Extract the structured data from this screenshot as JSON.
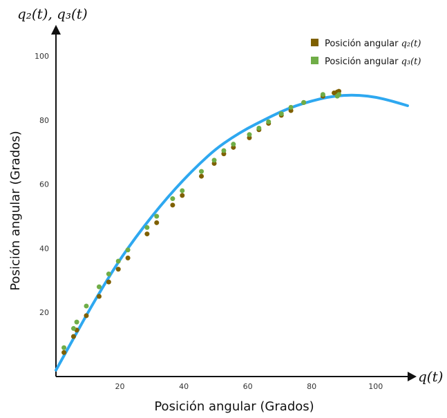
{
  "chart_data": {
    "type": "scatter",
    "title": "",
    "xlabel": "Posición angular (Grados)",
    "ylabel": "Posición angular (Grados)",
    "x_axis_symbol": "q(t)",
    "y_axis_symbol": "q₂(t), q₃(t)",
    "xlim": [
      0,
      110
    ],
    "ylim": [
      0,
      108
    ],
    "x_ticks": [
      20,
      40,
      60,
      80,
      100
    ],
    "y_ticks": [
      20,
      40,
      60,
      80,
      100
    ],
    "grid": false,
    "legend_position": "top-right",
    "series": [
      {
        "name": "Posición angular q₂(t)",
        "legend_prefix": "Posición angular ",
        "legend_symbol": "q₂(t)",
        "color": "#7f6000",
        "points": [
          [
            2.5,
            7.5
          ],
          [
            5.5,
            12.5
          ],
          [
            6.5,
            14.5
          ],
          [
            9.5,
            19.0
          ],
          [
            13.5,
            25.0
          ],
          [
            16.5,
            29.5
          ],
          [
            19.5,
            33.5
          ],
          [
            22.5,
            37.0
          ],
          [
            28.5,
            44.5
          ],
          [
            31.5,
            48.0
          ],
          [
            36.5,
            53.5
          ],
          [
            39.5,
            56.5
          ],
          [
            45.5,
            62.5
          ],
          [
            49.5,
            66.5
          ],
          [
            52.5,
            69.5
          ],
          [
            55.5,
            71.5
          ],
          [
            60.5,
            74.5
          ],
          [
            63.5,
            77.0
          ],
          [
            66.5,
            79.0
          ],
          [
            70.5,
            81.5
          ],
          [
            73.5,
            83.0
          ],
          [
            77.5,
            85.5
          ],
          [
            83.5,
            87.5
          ],
          [
            87.0,
            88.5
          ],
          [
            88.0,
            88.8
          ],
          [
            88.5,
            89.0
          ]
        ]
      },
      {
        "name": "Posición angular q₃(t)",
        "legend_prefix": "Posición angular ",
        "legend_symbol": "q₃(t)",
        "color": "#70ad47",
        "points": [
          [
            2.5,
            9.0
          ],
          [
            5.5,
            15.0
          ],
          [
            6.5,
            17.0
          ],
          [
            9.5,
            22.0
          ],
          [
            13.5,
            28.0
          ],
          [
            16.5,
            32.0
          ],
          [
            19.5,
            36.0
          ],
          [
            22.5,
            39.5
          ],
          [
            28.5,
            46.5
          ],
          [
            31.5,
            50.0
          ],
          [
            36.5,
            55.5
          ],
          [
            39.5,
            58.0
          ],
          [
            45.5,
            64.0
          ],
          [
            49.5,
            67.5
          ],
          [
            52.5,
            70.5
          ],
          [
            55.5,
            72.5
          ],
          [
            60.5,
            75.5
          ],
          [
            63.5,
            77.5
          ],
          [
            66.5,
            79.5
          ],
          [
            70.5,
            82.0
          ],
          [
            73.5,
            84.0
          ],
          [
            77.5,
            85.5
          ],
          [
            83.5,
            88.0
          ],
          [
            88.0,
            87.5
          ],
          [
            88.5,
            88.0
          ]
        ]
      }
    ],
    "fit_curve": {
      "color": "#2ea8f0",
      "points": [
        [
          0,
          2.0
        ],
        [
          5,
          11.0
        ],
        [
          10,
          20.0
        ],
        [
          15,
          28.5
        ],
        [
          20,
          36.5
        ],
        [
          25,
          43.5
        ],
        [
          30,
          50.0
        ],
        [
          35,
          56.0
        ],
        [
          40,
          61.5
        ],
        [
          45,
          66.5
        ],
        [
          50,
          71.0
        ],
        [
          55,
          74.5
        ],
        [
          60,
          77.5
        ],
        [
          65,
          80.0
        ],
        [
          70,
          82.5
        ],
        [
          75,
          84.5
        ],
        [
          80,
          86.0
        ],
        [
          85,
          87.2
        ],
        [
          90,
          87.8
        ],
        [
          95,
          87.8
        ],
        [
          100,
          87.2
        ],
        [
          105,
          86.0
        ],
        [
          110,
          84.5
        ]
      ]
    }
  }
}
